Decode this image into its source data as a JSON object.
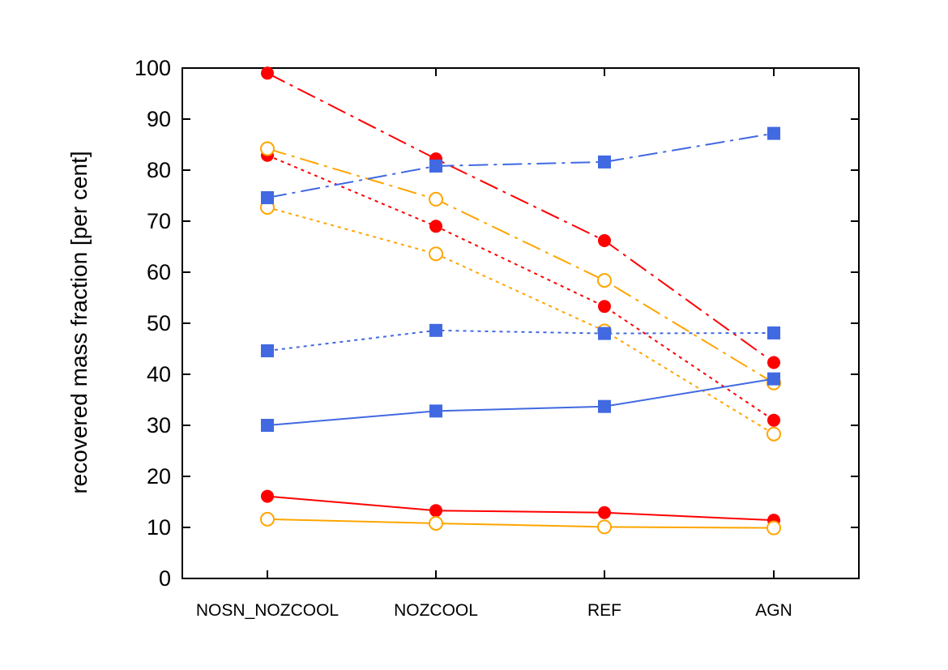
{
  "chart_data": {
    "type": "line",
    "title": "",
    "xlabel": "",
    "ylabel": "recovered mass fraction [per cent]",
    "categories": [
      "NOSN_NOZCOOL",
      "NOZCOOL",
      "REF",
      "AGN"
    ],
    "ylim": [
      0,
      100
    ],
    "yticks": [
      0,
      10,
      20,
      30,
      40,
      50,
      60,
      70,
      80,
      90,
      100
    ],
    "grid": false,
    "legend": "none",
    "series": [
      {
        "color": "#ff0000",
        "marker": "filled-circle",
        "line": "dash-dot",
        "values": [
          99.0,
          82.2,
          66.2,
          42.3
        ]
      },
      {
        "color": "#ff0000",
        "marker": "filled-circle",
        "line": "dotted",
        "values": [
          82.9,
          69.0,
          53.3,
          31.0
        ]
      },
      {
        "color": "#ff0000",
        "marker": "filled-circle",
        "line": "solid",
        "values": [
          16.1,
          13.3,
          12.9,
          11.4
        ]
      },
      {
        "color": "#ffa500",
        "marker": "open-circle",
        "line": "dash-dot",
        "values": [
          84.2,
          74.3,
          58.4,
          38.3
        ]
      },
      {
        "color": "#ffa500",
        "marker": "open-circle",
        "line": "dotted",
        "values": [
          72.7,
          63.6,
          48.5,
          28.3
        ]
      },
      {
        "color": "#ffa500",
        "marker": "open-circle",
        "line": "solid",
        "values": [
          11.6,
          10.8,
          10.1,
          9.9
        ]
      },
      {
        "color": "#4169e1",
        "marker": "filled-square",
        "line": "dash-dot",
        "values": [
          74.6,
          80.8,
          81.6,
          87.2
        ]
      },
      {
        "color": "#4169e1",
        "marker": "filled-square",
        "line": "dotted",
        "values": [
          44.6,
          48.6,
          48.0,
          48.1
        ]
      },
      {
        "color": "#4169e1",
        "marker": "filled-square",
        "line": "solid",
        "values": [
          30.0,
          32.8,
          33.7,
          39.1
        ]
      }
    ]
  }
}
